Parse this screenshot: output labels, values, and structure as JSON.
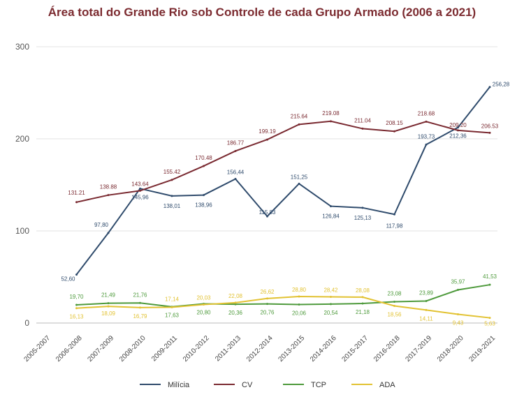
{
  "chart_data": {
    "type": "line",
    "title": "Área total do Grande Rio sob Controle de cada Grupo Armado (2006 a 2021)",
    "xlabel": "",
    "ylabel": "",
    "ylim": [
      0,
      300
    ],
    "yticks": [
      0,
      100,
      200,
      300
    ],
    "grid": true,
    "legend_position": "bottom",
    "categories": [
      "2005-2007",
      "2006-2008",
      "2007-2009",
      "2008-2010",
      "2009-2011",
      "2010-2012",
      "2011-2013",
      "2012-2014",
      "2013-2015",
      "2014-2016",
      "2015-2017",
      "2016-2018",
      "2017-2019",
      "2018-2020",
      "2019-2021"
    ],
    "series": [
      {
        "name": "Milícia",
        "color": "#2f4b6c",
        "values": [
          null,
          52.6,
          97.8,
          145.96,
          138.01,
          138.96,
          156.44,
          115.83,
          151.25,
          126.84,
          125.13,
          117.98,
          193.73,
          212.36,
          256.28
        ],
        "labels": [
          "",
          "52,60",
          "97,80",
          "145,96",
          "138,01",
          "138,96",
          "156,44",
          "115,83",
          "151,25",
          "126,84",
          "125,13",
          "117,98",
          "193,73",
          "212,36",
          "256,28"
        ]
      },
      {
        "name": "CV",
        "color": "#7a2a31",
        "values": [
          null,
          131.21,
          138.88,
          143.64,
          155.42,
          170.48,
          186.77,
          199.19,
          215.64,
          219.08,
          211.04,
          208.15,
          218.68,
          209.2,
          206.53
        ],
        "labels": [
          "",
          "131.21",
          "138.88",
          "143.64",
          "155.42",
          "170.48",
          "186.77",
          "199.19",
          "215.64",
          "219.08",
          "211.04",
          "208.15",
          "218.68",
          "209.20",
          "206.53"
        ]
      },
      {
        "name": "TCP",
        "color": "#4e9a3c",
        "values": [
          null,
          19.7,
          21.49,
          21.76,
          17.63,
          20.8,
          20.36,
          20.76,
          20.06,
          20.54,
          21.18,
          23.08,
          23.89,
          35.97,
          41.53
        ],
        "labels": [
          "",
          "19,70",
          "21,49",
          "21,76",
          "17,63",
          "20,80",
          "20,36",
          "20,76",
          "20,06",
          "20,54",
          "21,18",
          "23,08",
          "23,89",
          "35,97",
          "41,53"
        ]
      },
      {
        "name": "ADA",
        "color": "#e2c232",
        "values": [
          null,
          16.13,
          18.09,
          16.79,
          17.14,
          20.03,
          22.08,
          26.62,
          28.8,
          28.42,
          28.08,
          18.56,
          14.11,
          9.43,
          5.63
        ],
        "labels": [
          "",
          "16,13",
          "18,09",
          "16,79",
          "17,14",
          "20,03",
          "22,08",
          "26,62",
          "28,80",
          "28,42",
          "28,08",
          "18,56",
          "14,11",
          "9,43",
          "5,63"
        ]
      }
    ]
  }
}
